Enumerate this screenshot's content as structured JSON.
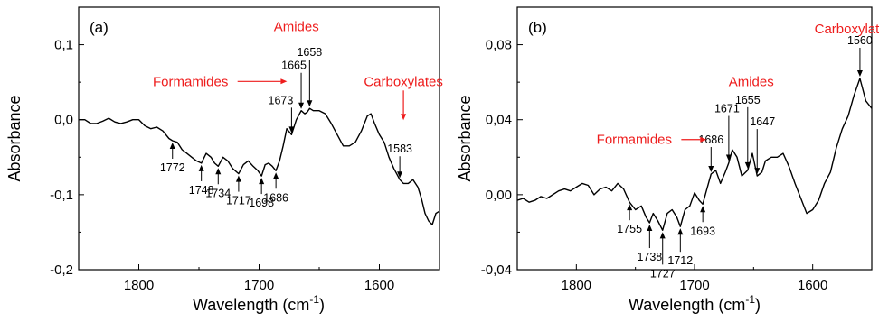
{
  "chart_data": [
    {
      "type": "line",
      "panel_label": "(a)",
      "xlabel": "Wavelength (cm",
      "xlabel_sup": "-1",
      "xlabel_tail": ")",
      "ylabel": "Absorbance",
      "xlim": [
        1850,
        1550
      ],
      "ylim": [
        -0.2,
        0.15
      ],
      "x_ticks": [
        1800,
        1700,
        1600
      ],
      "x_tick_labels": [
        "1800",
        "1700",
        "1600"
      ],
      "y_ticks": [
        -0.2,
        -0.1,
        0.0,
        0.1
      ],
      "y_tick_labels": [
        "-0,2",
        "-0,1",
        "0,0",
        "0,1"
      ],
      "series": [
        {
          "x": [
            1850,
            1845,
            1840,
            1835,
            1830,
            1825,
            1820,
            1815,
            1810,
            1805,
            1800,
            1795,
            1790,
            1785,
            1780,
            1775,
            1772,
            1768,
            1764,
            1760,
            1756,
            1752,
            1748,
            1744,
            1740,
            1737,
            1734,
            1730,
            1726,
            1722,
            1717,
            1713,
            1709,
            1705,
            1701,
            1698,
            1695,
            1692,
            1689,
            1686,
            1683,
            1680,
            1677,
            1673,
            1669,
            1665,
            1662,
            1660,
            1658,
            1655,
            1650,
            1645,
            1640,
            1635,
            1630,
            1625,
            1620,
            1615,
            1610,
            1607,
            1604,
            1600,
            1596,
            1592,
            1588,
            1583,
            1580,
            1576,
            1572,
            1568,
            1565,
            1562,
            1559,
            1556,
            1553,
            1550
          ],
          "y": [
            0.0,
            0.0,
            -0.005,
            -0.005,
            -0.002,
            0.002,
            -0.003,
            -0.005,
            -0.003,
            0.0,
            0.0,
            -0.008,
            -0.012,
            -0.01,
            -0.015,
            -0.025,
            -0.028,
            -0.03,
            -0.04,
            -0.045,
            -0.05,
            -0.055,
            -0.058,
            -0.045,
            -0.05,
            -0.058,
            -0.062,
            -0.05,
            -0.055,
            -0.065,
            -0.072,
            -0.06,
            -0.055,
            -0.062,
            -0.068,
            -0.075,
            -0.06,
            -0.058,
            -0.062,
            -0.068,
            -0.055,
            -0.035,
            -0.012,
            -0.02,
            0.0,
            0.012,
            0.008,
            0.01,
            0.015,
            0.012,
            0.012,
            0.008,
            -0.005,
            -0.02,
            -0.035,
            -0.035,
            -0.03,
            -0.015,
            0.005,
            0.008,
            -0.005,
            -0.02,
            -0.03,
            -0.05,
            -0.065,
            -0.08,
            -0.085,
            -0.085,
            -0.08,
            -0.09,
            -0.105,
            -0.125,
            -0.135,
            -0.14,
            -0.125,
            -0.122
          ]
        }
      ],
      "peak_annotations": [
        {
          "label": "1772",
          "x": 1772,
          "y": -0.028,
          "side": "below"
        },
        {
          "label": "1748",
          "x": 1748,
          "y": -0.058,
          "side": "below"
        },
        {
          "label": "1734",
          "x": 1734,
          "y": -0.062,
          "side": "below"
        },
        {
          "label": "1717",
          "x": 1717,
          "y": -0.072,
          "side": "below"
        },
        {
          "label": "1698",
          "x": 1698,
          "y": -0.075,
          "side": "below"
        },
        {
          "label": "1686",
          "x": 1686,
          "y": -0.068,
          "side": "below"
        },
        {
          "label": "1673",
          "x": 1673,
          "y": -0.02,
          "side": "above"
        },
        {
          "label": "1665",
          "x": 1665,
          "y": 0.012,
          "side": "above"
        },
        {
          "label": "1658",
          "x": 1658,
          "y": 0.015,
          "side": "above"
        },
        {
          "label": "1583",
          "x": 1583,
          "y": -0.08,
          "side": "above"
        }
      ],
      "group_labels": [
        {
          "label": "Amides",
          "x": 1669,
          "y": 0.118
        },
        {
          "label": "Formamides",
          "x": 1757,
          "y": 0.045
        },
        {
          "label": "Carboxylates",
          "x": 1580,
          "y": 0.045
        }
      ],
      "red_color": "#ee1c1c"
    },
    {
      "type": "line",
      "panel_label": "(b)",
      "xlabel": "Wavelength (cm",
      "xlabel_sup": "-1",
      "xlabel_tail": ")",
      "ylabel": "Absorbance",
      "xlim": [
        1850,
        1550
      ],
      "ylim": [
        -0.04,
        0.1
      ],
      "x_ticks": [
        1800,
        1700,
        1600
      ],
      "x_tick_labels": [
        "1800",
        "1700",
        "1600"
      ],
      "y_ticks": [
        -0.04,
        0.0,
        0.04,
        0.08
      ],
      "y_tick_labels": [
        "-0,04",
        "0,00",
        "0,04",
        "0,08"
      ],
      "series": [
        {
          "x": [
            1850,
            1845,
            1840,
            1835,
            1830,
            1825,
            1820,
            1815,
            1810,
            1805,
            1800,
            1795,
            1790,
            1785,
            1780,
            1775,
            1770,
            1765,
            1760,
            1755,
            1750,
            1745,
            1741,
            1738,
            1735,
            1731,
            1727,
            1723,
            1719,
            1715,
            1712,
            1708,
            1704,
            1700,
            1696,
            1693,
            1690,
            1686,
            1682,
            1678,
            1674,
            1671,
            1668,
            1664,
            1660,
            1655,
            1651,
            1647,
            1643,
            1640,
            1635,
            1630,
            1625,
            1620,
            1615,
            1610,
            1605,
            1600,
            1595,
            1590,
            1585,
            1580,
            1575,
            1570,
            1565,
            1560,
            1555,
            1550
          ],
          "y": [
            -0.003,
            -0.002,
            -0.004,
            -0.003,
            -0.001,
            -0.002,
            0.0,
            0.002,
            0.003,
            0.002,
            0.004,
            0.006,
            0.005,
            0.0,
            0.003,
            0.004,
            0.002,
            0.006,
            0.003,
            -0.004,
            -0.008,
            -0.006,
            -0.012,
            -0.015,
            -0.01,
            -0.014,
            -0.019,
            -0.01,
            -0.008,
            -0.012,
            -0.017,
            -0.008,
            -0.006,
            0.001,
            -0.003,
            -0.005,
            0.002,
            0.011,
            0.013,
            0.006,
            0.012,
            0.017,
            0.024,
            0.02,
            0.01,
            0.013,
            0.022,
            0.01,
            0.012,
            0.018,
            0.02,
            0.02,
            0.022,
            0.015,
            0.006,
            -0.002,
            -0.01,
            -0.008,
            -0.003,
            0.006,
            0.012,
            0.025,
            0.035,
            0.042,
            0.053,
            0.062,
            0.05,
            0.046
          ]
        }
      ],
      "peak_annotations": [
        {
          "label": "1755",
          "x": 1755,
          "y": -0.004,
          "side": "below"
        },
        {
          "label": "1738",
          "x": 1738,
          "y": -0.015,
          "side": "below"
        },
        {
          "label": "1727",
          "x": 1727,
          "y": -0.019,
          "side": "below"
        },
        {
          "label": "1712",
          "x": 1712,
          "y": -0.017,
          "side": "below"
        },
        {
          "label": "1693",
          "x": 1693,
          "y": -0.005,
          "side": "below"
        },
        {
          "label": "1686",
          "x": 1686,
          "y": 0.011,
          "side": "above"
        },
        {
          "label": "1671",
          "x": 1671,
          "y": 0.017,
          "side": "above"
        },
        {
          "label": "1655",
          "x": 1655,
          "y": 0.013,
          "side": "above"
        },
        {
          "label": "1647",
          "x": 1647,
          "y": 0.01,
          "side": "above"
        },
        {
          "label": "1560",
          "x": 1560,
          "y": 0.062,
          "side": "above"
        }
      ],
      "group_labels": [
        {
          "label": "Amides",
          "x": 1652,
          "y": 0.058
        },
        {
          "label": "Formamides",
          "x": 1751,
          "y": 0.027
        },
        {
          "label": "Carboxylates",
          "x": 1565,
          "y": 0.086
        }
      ],
      "red_color": "#ee1c1c"
    }
  ]
}
